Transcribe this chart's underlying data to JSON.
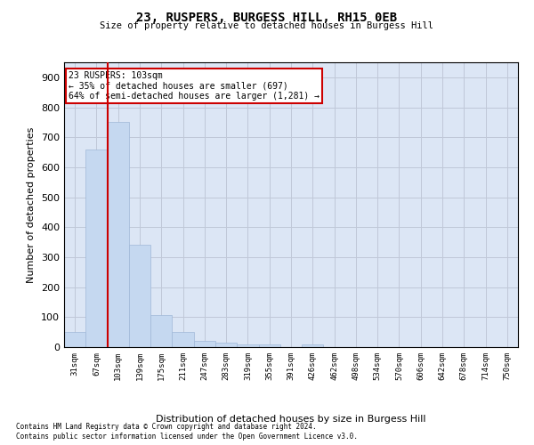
{
  "title": "23, RUSPERS, BURGESS HILL, RH15 0EB",
  "subtitle": "Size of property relative to detached houses in Burgess Hill",
  "xlabel": "Distribution of detached houses by size in Burgess Hill",
  "ylabel": "Number of detached properties",
  "footnote1": "Contains HM Land Registry data © Crown copyright and database right 2024.",
  "footnote2": "Contains public sector information licensed under the Open Government Licence v3.0.",
  "annotation_title": "23 RUSPERS: 103sqm",
  "annotation_line1": "← 35% of detached houses are smaller (697)",
  "annotation_line2": "64% of semi-detached houses are larger (1,281) →",
  "categories": [
    "31sqm",
    "67sqm",
    "103sqm",
    "139sqm",
    "175sqm",
    "211sqm",
    "247sqm",
    "283sqm",
    "319sqm",
    "355sqm",
    "391sqm",
    "426sqm",
    "462sqm",
    "498sqm",
    "534sqm",
    "570sqm",
    "606sqm",
    "642sqm",
    "678sqm",
    "714sqm",
    "750sqm"
  ],
  "values": [
    50,
    660,
    750,
    340,
    107,
    50,
    22,
    15,
    10,
    8,
    0,
    8,
    0,
    0,
    0,
    0,
    0,
    0,
    0,
    0,
    0
  ],
  "bar_color": "#c5d8f0",
  "bar_edge_color": "#a0b8d8",
  "vline_color": "#cc0000",
  "vline_x": 1.5,
  "annotation_box_color": "#ffffff",
  "annotation_box_edge": "#cc0000",
  "grid_color": "#c0c8d8",
  "bg_color": "#dce6f5",
  "ylim": [
    0,
    950
  ],
  "yticks": [
    0,
    100,
    200,
    300,
    400,
    500,
    600,
    700,
    800,
    900
  ]
}
